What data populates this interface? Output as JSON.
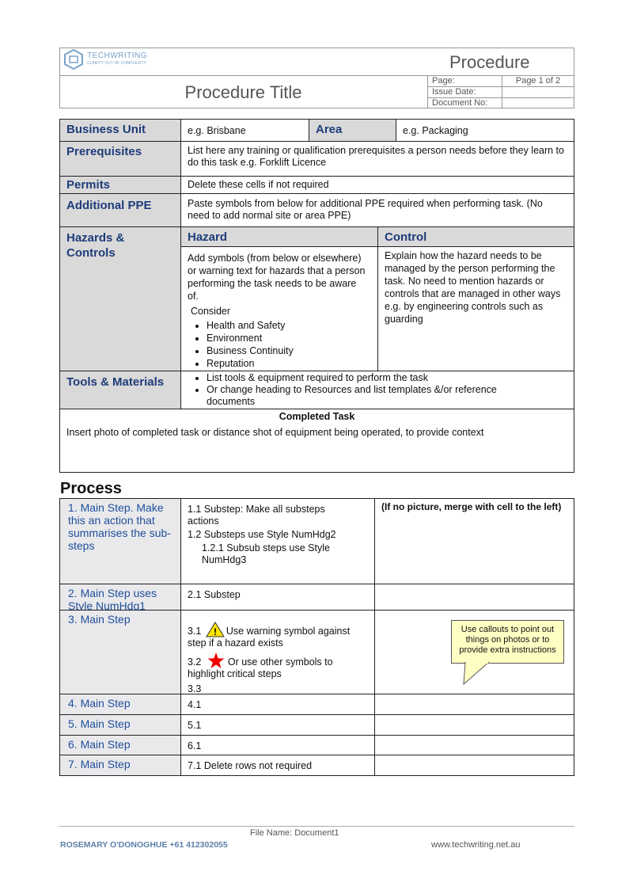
{
  "header": {
    "logo_text": "TECHWRITING",
    "logo_tagline": "CLARITY OUT OF COMPLEXITY",
    "doc_type": "Procedure",
    "title": "Procedure Title",
    "meta": [
      {
        "label": "Page:",
        "value": "Page 1 of 2"
      },
      {
        "label": "Issue Date:"
      },
      {
        "label": "Document No:"
      }
    ]
  },
  "info": {
    "business_unit": {
      "label": "Business Unit",
      "value": "e.g. Brisbane"
    },
    "area": {
      "label": "Area",
      "value": "e.g. Packaging"
    },
    "prerequisites": {
      "label": "Prerequisites",
      "text": "List here any training or qualification prerequisites a person needs before they learn to do this task e.g. Forklift Licence"
    },
    "permits": {
      "label": "Permits",
      "text": "Delete these cells if not required"
    },
    "additional_ppe": {
      "label": "Additional PPE",
      "text": "Paste symbols from below for additional PPE required when performing task. (No need to add normal site or area PPE)"
    },
    "hazards": {
      "label": "Hazards & Controls",
      "hazard_heading": "Hazard",
      "control_heading": "Control",
      "hazard_text": "Add symbols (from below or elsewhere) or warning text for hazards that a person performing the task needs to be aware of.",
      "consider": "Consider",
      "bullets": [
        "Health and Safety",
        "Environment",
        "Business Continuity",
        "Reputation"
      ],
      "control_text": "Explain how the hazard needs to be managed by the person performing the task. No need to mention hazards or controls that are managed in other ways e.g. by engineering controls such as guarding"
    },
    "tools": {
      "label": "Tools & Materials",
      "bullets": [
        "List tools & equipment required to perform the task",
        "Or change heading to Resources and list templates &/or reference documents"
      ]
    },
    "completed_task": {
      "heading": "Completed Task",
      "text": "Insert photo of completed task or distance shot of equipment being operated, to provide context"
    }
  },
  "process": {
    "heading": "Process",
    "rows": [
      {
        "step": "1. Main Step. Make this an action that summarises the sub-steps",
        "substeps": [
          {
            "num": "1.1",
            "text": "Substep: Make all substeps actions"
          },
          {
            "num": "1.2",
            "text": "Substeps use Style NumHdg2"
          },
          {
            "num": "1.2.1",
            "text": "Subsub steps use Style NumHdg3"
          }
        ],
        "note": "(If no picture, merge with cell to the left)"
      },
      {
        "step": "2. Main Step uses Style NumHdg1",
        "substeps": [
          {
            "num": "2.1",
            "text": "Substep"
          }
        ]
      },
      {
        "step": "3. Main Step",
        "substeps": [
          {
            "num": "3.1",
            "text": "Use warning symbol against step if a hazard exists"
          },
          {
            "num": "3.2",
            "text": "Or use other symbols to highlight critical steps"
          },
          {
            "num": "3.3"
          }
        ],
        "callout": "Use callouts to point out things on photos or to provide extra instructions"
      },
      {
        "step": "4. Main Step",
        "substeps": [
          {
            "num": "4.1"
          }
        ]
      },
      {
        "step": "5. Main Step",
        "substeps": [
          {
            "num": "5.1"
          }
        ]
      },
      {
        "step": "6. Main Step",
        "substeps": [
          {
            "num": "6.1"
          }
        ]
      },
      {
        "step": "7. Main Step",
        "substeps": [
          {
            "num": "7.1",
            "text": "Delete rows not required"
          }
        ]
      }
    ]
  },
  "footer": {
    "file_name": "File Name:  Document1",
    "author": "ROSEMARY O'DONOGHUE +61 412302055",
    "website": "www.techwriting.net.au"
  }
}
